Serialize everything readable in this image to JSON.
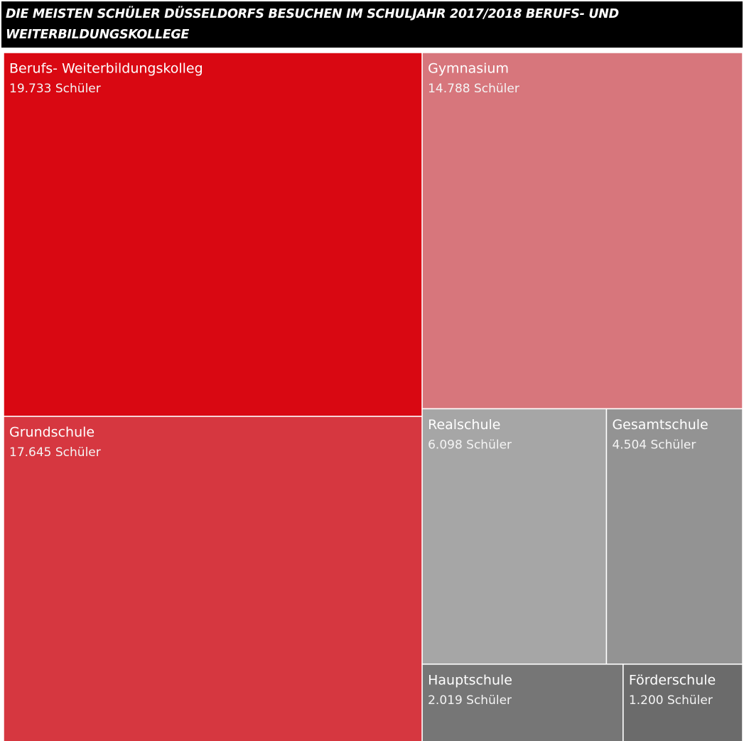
{
  "chart_data": {
    "type": "treemap",
    "title": "DIE MEISTEN SCHÜLER DÜSSELDORFS BESUCHEN IM SCHULJAHR 2017/2018 BERUFS- UND WEITERBILDUNGSKOLLEGE",
    "categories": [
      "Berufs- Weiterbildungskolleg",
      "Grundschule",
      "Gymnasium",
      "Realschule",
      "Gesamtschule",
      "Hauptschule",
      "Förderschule"
    ],
    "values": [
      19733,
      17645,
      14788,
      6098,
      4504,
      2019,
      1200
    ],
    "value_labels": [
      "19.733 Schüler",
      "17.645 Schüler",
      "14.788 Schüler",
      "6.098 Schüler",
      "4.504 Schüler",
      "2.019 Schüler",
      "1.200 Schüler"
    ],
    "colors": [
      "#d90812",
      "#d63740",
      "#d7767c",
      "#a6a6a6",
      "#939393",
      "#767676",
      "#6b6b6b"
    ]
  }
}
